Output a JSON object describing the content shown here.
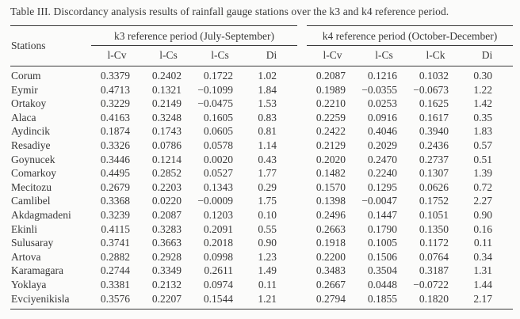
{
  "caption": "Table III. Discordancy analysis results of rainfall gauge stations over the k3 and k4 reference period.",
  "colors": {
    "background": "#fbfbfa",
    "text": "#383838",
    "rule": "#3a3a3a"
  },
  "table": {
    "stations_header": "Stations",
    "groups": [
      {
        "label": "k3 reference period (July-September)",
        "columns": [
          "l-Cv",
          "l-Cs",
          "l-Cs",
          "Di"
        ]
      },
      {
        "label": "k4 reference period (October-December)",
        "columns": [
          "l-Cv",
          "l-Cs",
          "l-Ck",
          "Di"
        ]
      }
    ],
    "rows": [
      {
        "station": "Corum",
        "k3": [
          "0.3379",
          "0.2402",
          "0.1722",
          "1.02"
        ],
        "k4": [
          "0.2087",
          "0.1216",
          "0.1032",
          "0.30"
        ]
      },
      {
        "station": "Eymir",
        "k3": [
          "0.4713",
          "0.1321",
          "−0.1099",
          "1.84"
        ],
        "k4": [
          "0.1989",
          "−0.0355",
          "−0.0673",
          "1.22"
        ]
      },
      {
        "station": "Ortakoy",
        "k3": [
          "0.3229",
          "0.2149",
          "−0.0475",
          "1.53"
        ],
        "k4": [
          "0.2210",
          "0.0253",
          "0.1625",
          "1.42"
        ]
      },
      {
        "station": "Alaca",
        "k3": [
          "0.4163",
          "0.3248",
          "0.1605",
          "0.83"
        ],
        "k4": [
          "0.2259",
          "0.0916",
          "0.1617",
          "0.35"
        ]
      },
      {
        "station": "Aydincik",
        "k3": [
          "0.1874",
          "0.1743",
          "0.0605",
          "0.81"
        ],
        "k4": [
          "0.2422",
          "0.4046",
          "0.3940",
          "1.83"
        ]
      },
      {
        "station": "Resadiye",
        "k3": [
          "0.3326",
          "0.0786",
          "0.0578",
          "1.14"
        ],
        "k4": [
          "0.2129",
          "0.2029",
          "0.2436",
          "0.57"
        ]
      },
      {
        "station": "Goynucek",
        "k3": [
          "0.3446",
          "0.1214",
          "0.0020",
          "0.43"
        ],
        "k4": [
          "0.2020",
          "0.2470",
          "0.2737",
          "0.51"
        ]
      },
      {
        "station": "Comarkoy",
        "k3": [
          "0.4495",
          "0.2852",
          "0.0527",
          "1.77"
        ],
        "k4": [
          "0.1482",
          "0.2240",
          "0.1307",
          "1.39"
        ]
      },
      {
        "station": "Mecitozu",
        "k3": [
          "0.2679",
          "0.2203",
          "0.1343",
          "0.29"
        ],
        "k4": [
          "0.1570",
          "0.1295",
          "0.0626",
          "0.72"
        ]
      },
      {
        "station": "Camlibel",
        "k3": [
          "0.3368",
          "0.0220",
          "−0.0009",
          "1.75"
        ],
        "k4": [
          "0.1398",
          "−0.0047",
          "0.1752",
          "2.27"
        ]
      },
      {
        "station": "Akdagmadeni",
        "k3": [
          "0.3239",
          "0.2087",
          "0.1203",
          "0.10"
        ],
        "k4": [
          "0.2496",
          "0.1447",
          "0.1051",
          "0.90"
        ]
      },
      {
        "station": "Ekinli",
        "k3": [
          "0.4115",
          "0.3283",
          "0.2091",
          "0.55"
        ],
        "k4": [
          "0.2663",
          "0.1790",
          "0.1350",
          "0.16"
        ]
      },
      {
        "station": "Sulusaray",
        "k3": [
          "0.3741",
          "0.3663",
          "0.2018",
          "0.90"
        ],
        "k4": [
          "0.1918",
          "0.1005",
          "0.1172",
          "0.11"
        ]
      },
      {
        "station": "Artova",
        "k3": [
          "0.2882",
          "0.2928",
          "0.0998",
          "1.23"
        ],
        "k4": [
          "0.2200",
          "0.1506",
          "0.0764",
          "0.34"
        ]
      },
      {
        "station": "Karamagara",
        "k3": [
          "0.2744",
          "0.3349",
          "0.2611",
          "1.49"
        ],
        "k4": [
          "0.3483",
          "0.3504",
          "0.3187",
          "1.31"
        ]
      },
      {
        "station": "Yoklaya",
        "k3": [
          "0.3381",
          "0.2132",
          "0.0974",
          "0.11"
        ],
        "k4": [
          "0.2667",
          "0.0448",
          "−0.0722",
          "1.44"
        ]
      },
      {
        "station": "Evciyenikisla",
        "k3": [
          "0.3576",
          "0.2207",
          "0.1544",
          "1.21"
        ],
        "k4": [
          "0.2794",
          "0.1855",
          "0.1820",
          "2.17"
        ]
      }
    ]
  }
}
